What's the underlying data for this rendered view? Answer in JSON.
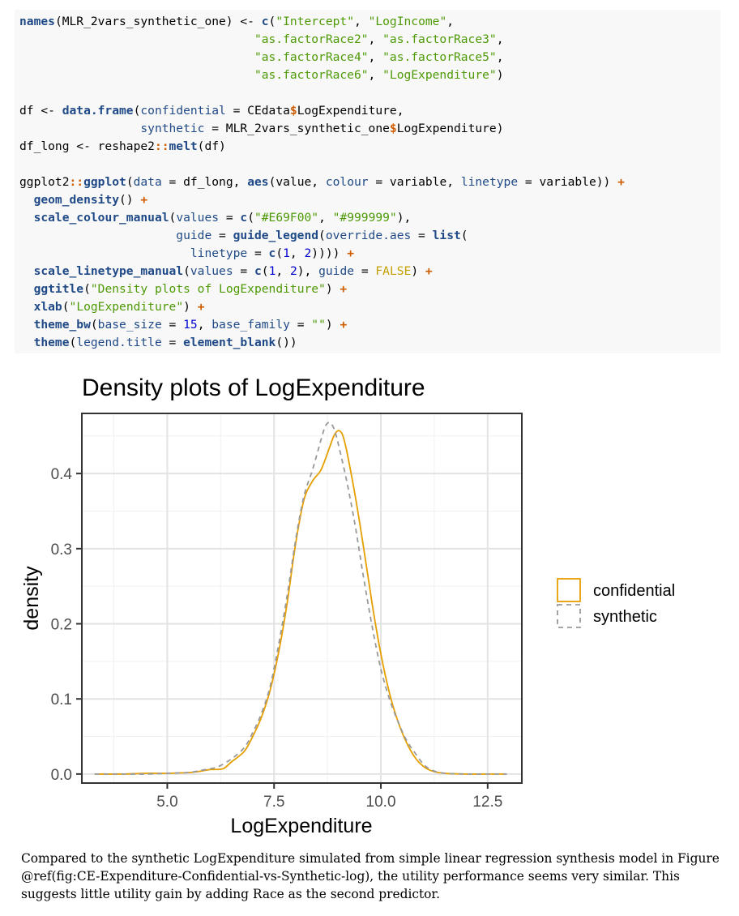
{
  "code": {
    "lines": [
      [
        {
          "t": "names",
          "c": "fn"
        },
        {
          "t": "(MLR_2vars_synthetic_one) <- ",
          "c": "plain"
        },
        {
          "t": "c",
          "c": "fn"
        },
        {
          "t": "(",
          "c": "plain"
        },
        {
          "t": "\"Intercept\"",
          "c": "str"
        },
        {
          "t": ", ",
          "c": "plain"
        },
        {
          "t": "\"LogIncome\"",
          "c": "str"
        },
        {
          "t": ",",
          "c": "plain"
        }
      ],
      [
        {
          "t": "                                 ",
          "c": "plain"
        },
        {
          "t": "\"as.factorRace2\"",
          "c": "str"
        },
        {
          "t": ", ",
          "c": "plain"
        },
        {
          "t": "\"as.factorRace3\"",
          "c": "str"
        },
        {
          "t": ",",
          "c": "plain"
        }
      ],
      [
        {
          "t": "                                 ",
          "c": "plain"
        },
        {
          "t": "\"as.factorRace4\"",
          "c": "str"
        },
        {
          "t": ", ",
          "c": "plain"
        },
        {
          "t": "\"as.factorRace5\"",
          "c": "str"
        },
        {
          "t": ",",
          "c": "plain"
        }
      ],
      [
        {
          "t": "                                 ",
          "c": "plain"
        },
        {
          "t": "\"as.factorRace6\"",
          "c": "str"
        },
        {
          "t": ", ",
          "c": "plain"
        },
        {
          "t": "\"LogExpenditure\"",
          "c": "str"
        },
        {
          "t": ")",
          "c": "plain"
        }
      ],
      [],
      [
        {
          "t": "df <- ",
          "c": "plain"
        },
        {
          "t": "data.frame",
          "c": "fn"
        },
        {
          "t": "(",
          "c": "plain"
        },
        {
          "t": "confidential",
          "c": "arg"
        },
        {
          "t": " = CEdata",
          "c": "plain"
        },
        {
          "t": "$",
          "c": "op"
        },
        {
          "t": "LogExpenditure,",
          "c": "plain"
        }
      ],
      [
        {
          "t": "                 ",
          "c": "plain"
        },
        {
          "t": "synthetic",
          "c": "arg"
        },
        {
          "t": " = MLR_2vars_synthetic_one",
          "c": "plain"
        },
        {
          "t": "$",
          "c": "op"
        },
        {
          "t": "LogExpenditure)",
          "c": "plain"
        }
      ],
      [
        {
          "t": "df_long <- reshape2",
          "c": "plain"
        },
        {
          "t": "::",
          "c": "op"
        },
        {
          "t": "melt",
          "c": "fn"
        },
        {
          "t": "(df)",
          "c": "plain"
        }
      ],
      [],
      [
        {
          "t": "ggplot2",
          "c": "plain"
        },
        {
          "t": "::",
          "c": "op"
        },
        {
          "t": "ggplot",
          "c": "fn"
        },
        {
          "t": "(",
          "c": "plain"
        },
        {
          "t": "data",
          "c": "arg"
        },
        {
          "t": " = df_long, ",
          "c": "plain"
        },
        {
          "t": "aes",
          "c": "fn"
        },
        {
          "t": "(value, ",
          "c": "plain"
        },
        {
          "t": "colour",
          "c": "arg"
        },
        {
          "t": " = variable, ",
          "c": "plain"
        },
        {
          "t": "linetype",
          "c": "arg"
        },
        {
          "t": " = variable)) ",
          "c": "plain"
        },
        {
          "t": "+",
          "c": "op"
        }
      ],
      [
        {
          "t": "  ",
          "c": "plain"
        },
        {
          "t": "geom_density",
          "c": "fn"
        },
        {
          "t": "() ",
          "c": "plain"
        },
        {
          "t": "+",
          "c": "op"
        }
      ],
      [
        {
          "t": "  ",
          "c": "plain"
        },
        {
          "t": "scale_colour_manual",
          "c": "fn"
        },
        {
          "t": "(",
          "c": "plain"
        },
        {
          "t": "values",
          "c": "arg"
        },
        {
          "t": " = ",
          "c": "plain"
        },
        {
          "t": "c",
          "c": "fn"
        },
        {
          "t": "(",
          "c": "plain"
        },
        {
          "t": "\"#E69F00\"",
          "c": "str"
        },
        {
          "t": ", ",
          "c": "plain"
        },
        {
          "t": "\"#999999\"",
          "c": "str"
        },
        {
          "t": "),",
          "c": "plain"
        }
      ],
      [
        {
          "t": "                      ",
          "c": "plain"
        },
        {
          "t": "guide",
          "c": "arg"
        },
        {
          "t": " = ",
          "c": "plain"
        },
        {
          "t": "guide_legend",
          "c": "fn"
        },
        {
          "t": "(",
          "c": "plain"
        },
        {
          "t": "override.aes",
          "c": "arg"
        },
        {
          "t": " = ",
          "c": "plain"
        },
        {
          "t": "list",
          "c": "fn"
        },
        {
          "t": "(",
          "c": "plain"
        }
      ],
      [
        {
          "t": "                        ",
          "c": "plain"
        },
        {
          "t": "linetype",
          "c": "arg"
        },
        {
          "t": " = ",
          "c": "plain"
        },
        {
          "t": "c",
          "c": "fn"
        },
        {
          "t": "(",
          "c": "plain"
        },
        {
          "t": "1",
          "c": "num"
        },
        {
          "t": ", ",
          "c": "plain"
        },
        {
          "t": "2",
          "c": "num"
        },
        {
          "t": ")))) ",
          "c": "plain"
        },
        {
          "t": "+",
          "c": "op"
        }
      ],
      [
        {
          "t": "  ",
          "c": "plain"
        },
        {
          "t": "scale_linetype_manual",
          "c": "fn"
        },
        {
          "t": "(",
          "c": "plain"
        },
        {
          "t": "values",
          "c": "arg"
        },
        {
          "t": " = ",
          "c": "plain"
        },
        {
          "t": "c",
          "c": "fn"
        },
        {
          "t": "(",
          "c": "plain"
        },
        {
          "t": "1",
          "c": "num"
        },
        {
          "t": ", ",
          "c": "plain"
        },
        {
          "t": "2",
          "c": "num"
        },
        {
          "t": "), ",
          "c": "plain"
        },
        {
          "t": "guide",
          "c": "arg"
        },
        {
          "t": " = ",
          "c": "plain"
        },
        {
          "t": "FALSE",
          "c": "kw"
        },
        {
          "t": ") ",
          "c": "plain"
        },
        {
          "t": "+",
          "c": "op"
        }
      ],
      [
        {
          "t": "  ",
          "c": "plain"
        },
        {
          "t": "ggtitle",
          "c": "fn"
        },
        {
          "t": "(",
          "c": "plain"
        },
        {
          "t": "\"Density plots of LogExpenditure\"",
          "c": "str"
        },
        {
          "t": ") ",
          "c": "plain"
        },
        {
          "t": "+",
          "c": "op"
        }
      ],
      [
        {
          "t": "  ",
          "c": "plain"
        },
        {
          "t": "xlab",
          "c": "fn"
        },
        {
          "t": "(",
          "c": "plain"
        },
        {
          "t": "\"LogExpenditure\"",
          "c": "str"
        },
        {
          "t": ") ",
          "c": "plain"
        },
        {
          "t": "+",
          "c": "op"
        }
      ],
      [
        {
          "t": "  ",
          "c": "plain"
        },
        {
          "t": "theme_bw",
          "c": "fn"
        },
        {
          "t": "(",
          "c": "plain"
        },
        {
          "t": "base_size",
          "c": "arg"
        },
        {
          "t": " = ",
          "c": "plain"
        },
        {
          "t": "15",
          "c": "num"
        },
        {
          "t": ", ",
          "c": "plain"
        },
        {
          "t": "base_family",
          "c": "arg"
        },
        {
          "t": " = ",
          "c": "plain"
        },
        {
          "t": "\"\"",
          "c": "str"
        },
        {
          "t": ") ",
          "c": "plain"
        },
        {
          "t": "+",
          "c": "op"
        }
      ],
      [
        {
          "t": "  ",
          "c": "plain"
        },
        {
          "t": "theme",
          "c": "fn"
        },
        {
          "t": "(",
          "c": "plain"
        },
        {
          "t": "legend.title",
          "c": "arg"
        },
        {
          "t": " = ",
          "c": "plain"
        },
        {
          "t": "element_blank",
          "c": "fn"
        },
        {
          "t": "())",
          "c": "plain"
        }
      ]
    ]
  },
  "chart_data": {
    "type": "line",
    "title": "Density plots of LogExpenditure",
    "xlabel": "LogExpenditure",
    "ylabel": "density",
    "xlim": [
      3.0,
      13.3
    ],
    "ylim": [
      -0.012,
      0.48
    ],
    "xticks": [
      5.0,
      7.5,
      10.0,
      12.5
    ],
    "xtick_labels": [
      "5.0",
      "7.5",
      "10.0",
      "12.5"
    ],
    "yticks": [
      0.0,
      0.1,
      0.2,
      0.3,
      0.4
    ],
    "ytick_labels": [
      "0.0",
      "0.1",
      "0.2",
      "0.3",
      "0.4"
    ],
    "grid": true,
    "legend_position": "right",
    "series": [
      {
        "name": "confidential",
        "color": "#E69F00",
        "linetype": "solid",
        "x": [
          3.3,
          4.0,
          4.5,
          5.0,
          5.5,
          5.8,
          6.0,
          6.3,
          6.5,
          6.8,
          7.0,
          7.2,
          7.4,
          7.6,
          7.8,
          8.0,
          8.2,
          8.4,
          8.6,
          8.8,
          8.9,
          9.0,
          9.1,
          9.2,
          9.4,
          9.6,
          9.8,
          10.0,
          10.2,
          10.4,
          10.6,
          10.8,
          11.0,
          11.2,
          11.5,
          12.0,
          12.5,
          12.95
        ],
        "y": [
          0.0,
          0.0,
          0.001,
          0.001,
          0.002,
          0.004,
          0.006,
          0.007,
          0.016,
          0.03,
          0.05,
          0.075,
          0.11,
          0.16,
          0.225,
          0.305,
          0.365,
          0.39,
          0.405,
          0.435,
          0.45,
          0.457,
          0.452,
          0.43,
          0.37,
          0.3,
          0.225,
          0.16,
          0.108,
          0.07,
          0.042,
          0.022,
          0.01,
          0.004,
          0.001,
          0.0,
          0.0,
          0.0
        ]
      },
      {
        "name": "synthetic",
        "color": "#999999",
        "linetype": "dashed",
        "x": [
          3.3,
          4.0,
          4.5,
          5.0,
          5.5,
          5.8,
          6.0,
          6.2,
          6.5,
          6.8,
          7.0,
          7.2,
          7.4,
          7.6,
          7.8,
          8.0,
          8.2,
          8.4,
          8.6,
          8.7,
          8.8,
          8.9,
          9.0,
          9.2,
          9.4,
          9.6,
          9.8,
          10.0,
          10.2,
          10.4,
          10.6,
          10.8,
          11.0,
          11.2,
          11.5,
          12.0,
          12.5,
          12.95
        ],
        "y": [
          0.0,
          0.0,
          0.0,
          0.001,
          0.002,
          0.005,
          0.007,
          0.01,
          0.02,
          0.035,
          0.055,
          0.08,
          0.115,
          0.17,
          0.235,
          0.31,
          0.37,
          0.405,
          0.445,
          0.463,
          0.468,
          0.46,
          0.44,
          0.39,
          0.33,
          0.26,
          0.195,
          0.14,
          0.1,
          0.07,
          0.045,
          0.028,
          0.013,
          0.005,
          0.001,
          0.0,
          0.0,
          0.0
        ]
      }
    ]
  },
  "caption": {
    "lines": [
      "Compared to the synthetic LogExpenditure simulated from simple linear regression synthesis model in Figure",
      "@ref(fig:CE-Expenditure-Confidential-vs-Synthetic-log), the utility performance seems very similar. This",
      "suggests little utility gain by adding Race as the second predictor."
    ]
  }
}
